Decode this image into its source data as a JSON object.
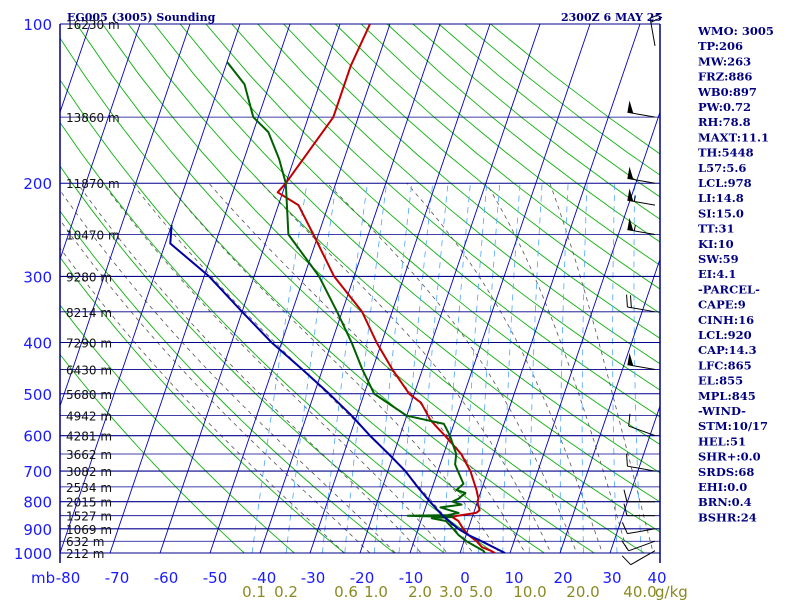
{
  "header": {
    "station": "EG005 (3005) Sounding",
    "time": "2300Z  6 MAY 25"
  },
  "units": {
    "pressure": "mb"
  },
  "indices": [
    "WMO: 3005",
    "TP:206",
    "MW:263",
    "FRZ:886",
    "WB0:897",
    "PW:0.72",
    "RH:78.8",
    "MAXT:11.1",
    "TH:5448",
    "L57:5.6",
    "LCL:978",
    "LI:14.8",
    "SI:15.0",
    "TT:31",
    "KI:10",
    "SW:59",
    "EI:4.1",
    "-PARCEL-",
    "CAPE:9",
    "CINH:16",
    "LCL:920",
    "CAP:14.3",
    "LFC:865",
    "EL:855",
    "MPL:845",
    "-WIND-",
    "STM:10/17",
    "HEL:51",
    "SHR+:0.0",
    "SRDS:68",
    "EHI:0.0",
    "BRN:0.4",
    "BSHR:24"
  ],
  "chart_data": {
    "type": "line",
    "title": "EG005 (3005) Sounding",
    "chart_kind": "skew-T log-P diagram",
    "y_axis": {
      "label": "mb",
      "scale": "log",
      "range": [
        1000,
        100
      ],
      "ticks": [
        {
          "p": 100,
          "label": "100"
        },
        {
          "p": 200,
          "label": "200"
        },
        {
          "p": 300,
          "label": "300"
        },
        {
          "p": 400,
          "label": "400"
        },
        {
          "p": 500,
          "label": "500"
        },
        {
          "p": 600,
          "label": "600"
        },
        {
          "p": 700,
          "label": "700"
        },
        {
          "p": 800,
          "label": "800"
        },
        {
          "p": 900,
          "label": "900"
        },
        {
          "p": 1000,
          "label": "1000"
        }
      ]
    },
    "x_axis": {
      "unit": "°C",
      "range": [
        -80,
        40
      ],
      "ticks": [
        {
          "t": -80,
          "label": "-80"
        },
        {
          "t": -70,
          "label": "-70"
        },
        {
          "t": -60,
          "label": "-60"
        },
        {
          "t": -50,
          "label": "-50"
        },
        {
          "t": -40,
          "label": "-40"
        },
        {
          "t": -30,
          "label": "-30"
        },
        {
          "t": -20,
          "label": "-20"
        },
        {
          "t": -10,
          "label": "-10"
        },
        {
          "t": 0,
          "label": "0"
        },
        {
          "t": 10,
          "label": "10"
        },
        {
          "t": 20,
          "label": "20"
        },
        {
          "t": 30,
          "label": "30"
        },
        {
          "t": 40,
          "label": "40"
        }
      ]
    },
    "height_labels": [
      {
        "p": 100,
        "label": "16230 m"
      },
      {
        "p": 150,
        "label": "13860 m"
      },
      {
        "p": 200,
        "label": "11870 m"
      },
      {
        "p": 250,
        "label": "10470 m"
      },
      {
        "p": 300,
        "label": "9280 m"
      },
      {
        "p": 350,
        "label": "8214 m"
      },
      {
        "p": 400,
        "label": "7290 m"
      },
      {
        "p": 450,
        "label": "6430 m"
      },
      {
        "p": 500,
        "label": "5680 m"
      },
      {
        "p": 550,
        "label": "4942 m"
      },
      {
        "p": 600,
        "label": "4281 m"
      },
      {
        "p": 650,
        "label": "3662 m"
      },
      {
        "p": 700,
        "label": "3082 m"
      },
      {
        "p": 750,
        "label": "2534 m"
      },
      {
        "p": 800,
        "label": "2015 m"
      },
      {
        "p": 850,
        "label": "1527 m"
      },
      {
        "p": 900,
        "label": "1069 m"
      },
      {
        "p": 950,
        "label": "632 m"
      },
      {
        "p": 1000,
        "label": "212 m"
      }
    ],
    "mixing_ratio_labels": [
      {
        "w": 0.1,
        "label": "0.1"
      },
      {
        "w": 0.2,
        "label": "0.2"
      },
      {
        "w": 0.6,
        "label": "0.6"
      },
      {
        "w": 1.0,
        "label": "1.0"
      },
      {
        "w": 2.0,
        "label": "2.0"
      },
      {
        "w": 3.0,
        "label": "3.0"
      },
      {
        "w": 5.0,
        "label": "5.0"
      },
      {
        "w": 10.0,
        "label": "10.0"
      },
      {
        "w": 20.0,
        "label": "20.0"
      },
      {
        "w": 40.0,
        "label": "40.0"
      }
    ],
    "mixing_ratio_unit": "g/kg",
    "series": [
      {
        "color": "#c00000",
        "points": [
          [
            1000,
            7
          ],
          [
            990,
            6
          ],
          [
            975,
            4
          ],
          [
            950,
            2.5
          ],
          [
            925,
            0.5
          ],
          [
            900,
            -1
          ],
          [
            870,
            -2.5
          ],
          [
            855,
            -4
          ],
          [
            850,
            -3
          ],
          [
            840,
            0.5
          ],
          [
            830,
            1
          ],
          [
            815,
            0.5
          ],
          [
            800,
            0
          ],
          [
            790,
            0
          ],
          [
            760,
            -1
          ],
          [
            700,
            -3.5
          ],
          [
            650,
            -6.5
          ],
          [
            600,
            -11
          ],
          [
            580,
            -13
          ],
          [
            560,
            -15
          ],
          [
            520,
            -18
          ],
          [
            500,
            -21
          ],
          [
            450,
            -26
          ],
          [
            400,
            -31
          ],
          [
            350,
            -36
          ],
          [
            300,
            -44
          ],
          [
            250,
            -51
          ],
          [
            220,
            -56
          ],
          [
            208,
            -61
          ],
          [
            200,
            -60
          ],
          [
            150,
            -55
          ],
          [
            120,
            -55
          ],
          [
            100,
            -54
          ]
        ]
      },
      {
        "color": "#006000",
        "points": [
          [
            1000,
            5
          ],
          [
            990,
            4.5
          ],
          [
            975,
            3
          ],
          [
            960,
            1.5
          ],
          [
            950,
            0.5
          ],
          [
            925,
            -1.5
          ],
          [
            900,
            -3
          ],
          [
            870,
            -5
          ],
          [
            860,
            -8
          ],
          [
            855,
            -4
          ],
          [
            850,
            -13
          ],
          [
            848,
            -5
          ],
          [
            840,
            -3
          ],
          [
            830,
            -5
          ],
          [
            820,
            -7
          ],
          [
            810,
            -3
          ],
          [
            800,
            -5
          ],
          [
            790,
            -4
          ],
          [
            770,
            -3
          ],
          [
            760,
            -5
          ],
          [
            740,
            -4
          ],
          [
            720,
            -5
          ],
          [
            700,
            -6
          ],
          [
            680,
            -7
          ],
          [
            650,
            -7.5
          ],
          [
            600,
            -10
          ],
          [
            570,
            -12
          ],
          [
            550,
            -20
          ],
          [
            500,
            -28
          ],
          [
            450,
            -32
          ],
          [
            400,
            -36
          ],
          [
            350,
            -41
          ],
          [
            300,
            -47
          ],
          [
            250,
            -56
          ],
          [
            200,
            -60
          ],
          [
            180,
            -63
          ],
          [
            160,
            -67
          ],
          [
            150,
            -71
          ],
          [
            130,
            -75
          ],
          [
            118,
            -80
          ]
        ]
      },
      {
        "color": "#0000a0",
        "points": [
          [
            1000,
            9
          ],
          [
            950,
            3.5
          ],
          [
            925,
            0.5
          ],
          [
            900,
            -2
          ],
          [
            850,
            -6
          ],
          [
            800,
            -9.5
          ],
          [
            750,
            -13
          ],
          [
            700,
            -16.5
          ],
          [
            650,
            -21
          ],
          [
            600,
            -26
          ],
          [
            550,
            -31
          ],
          [
            500,
            -37
          ],
          [
            450,
            -44
          ],
          [
            400,
            -52
          ],
          [
            350,
            -60
          ],
          [
            300,
            -69
          ],
          [
            260,
            -79
          ],
          [
            240,
            -80
          ]
        ]
      }
    ],
    "wind_barbs": [
      {
        "p": 990,
        "dir": 240,
        "speed_kt": 10
      },
      {
        "p": 950,
        "dir": 250,
        "speed_kt": 10
      },
      {
        "p": 900,
        "dir": 260,
        "speed_kt": 10
      },
      {
        "p": 850,
        "dir": 270,
        "speed_kt": 10
      },
      {
        "p": 800,
        "dir": 270,
        "speed_kt": 10
      },
      {
        "p": 700,
        "dir": 280,
        "speed_kt": 10
      },
      {
        "p": 600,
        "dir": 290,
        "speed_kt": 10
      },
      {
        "p": 450,
        "dir": 280,
        "speed_kt": 50
      },
      {
        "p": 350,
        "dir": 280,
        "speed_kt": 20
      },
      {
        "p": 250,
        "dir": 280,
        "speed_kt": 55
      },
      {
        "p": 220,
        "dir": 280,
        "speed_kt": 55
      },
      {
        "p": 200,
        "dir": 280,
        "speed_kt": 50
      },
      {
        "p": 150,
        "dir": 280,
        "speed_kt": 50
      },
      {
        "p": 110,
        "dir": 350,
        "speed_kt": 20
      }
    ],
    "colors": {
      "isobar": "#00008b",
      "isotherm": "#0000c0",
      "dry_adiabat": "#10b010",
      "moist_adiabat": "#555555",
      "mixing_ratio": "#4da6ff",
      "frame": "#000080"
    }
  }
}
